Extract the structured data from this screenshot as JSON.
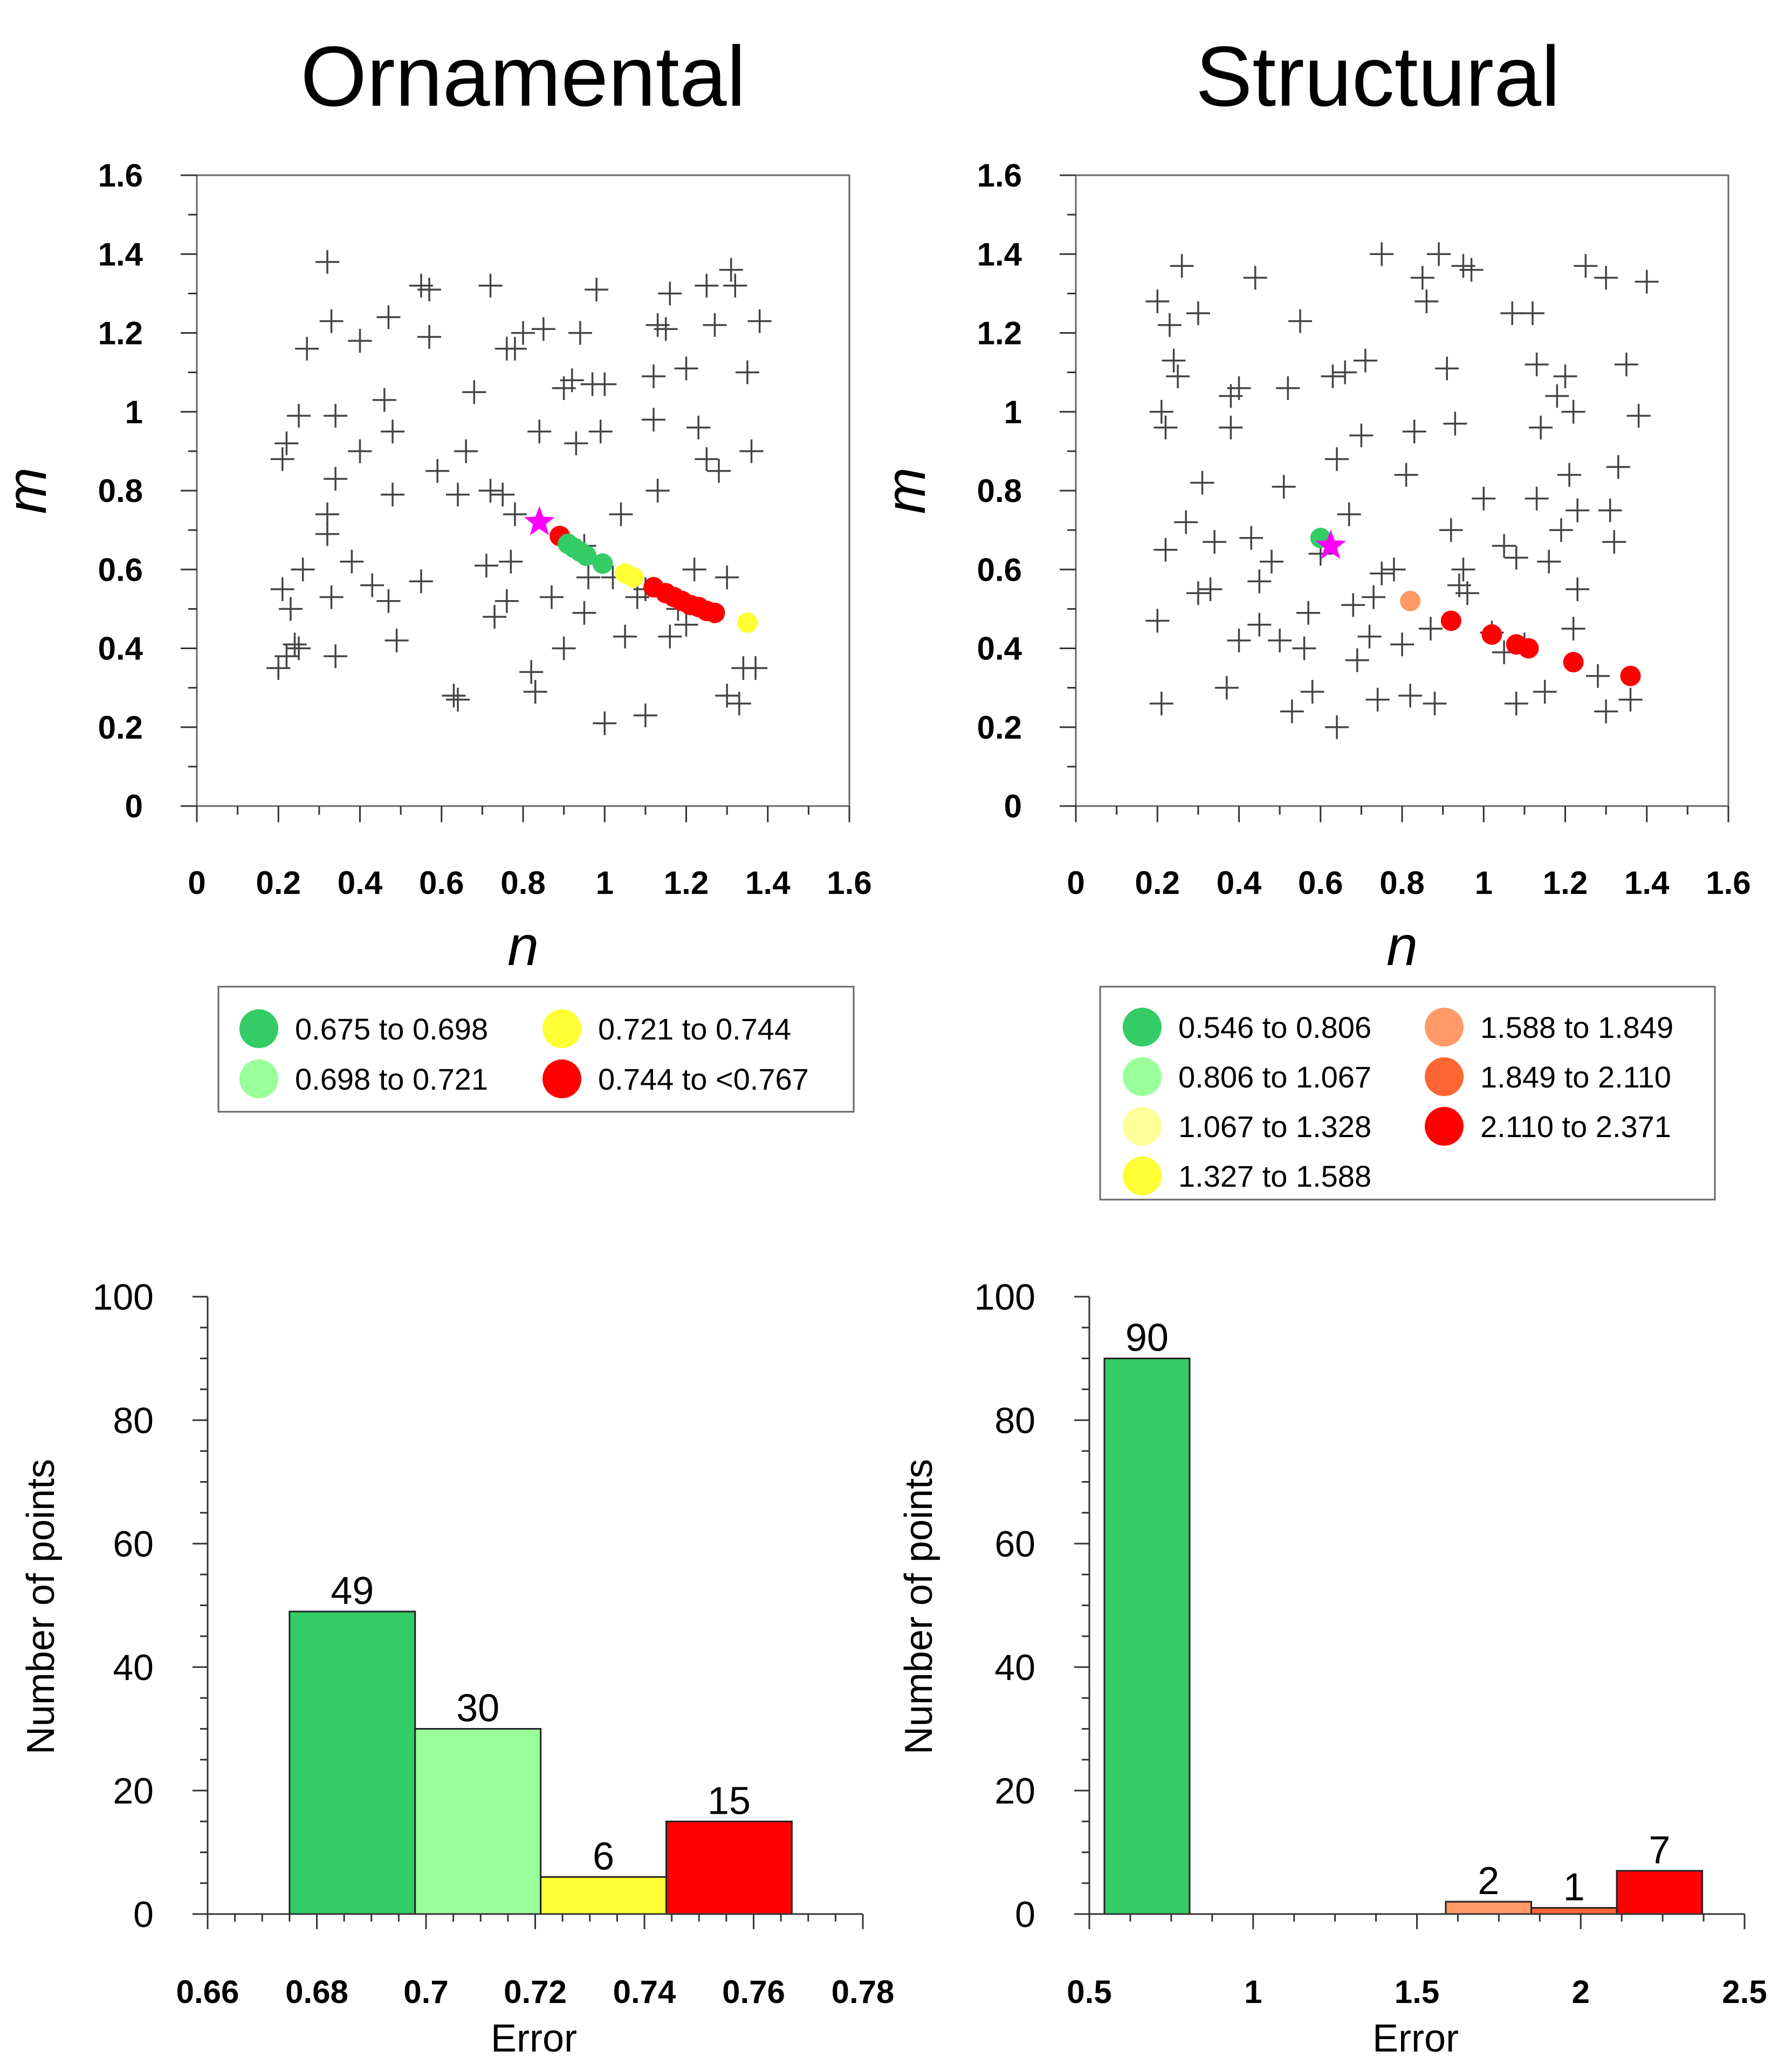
{
  "columns": [
    {
      "title": "Ornamental"
    },
    {
      "title": "Structural"
    }
  ],
  "colors": {
    "axis": "#333333",
    "cross": "#444444",
    "star": "#ff00ff",
    "frame": "#666666"
  },
  "chart_data": [
    {
      "id": "ornamental-scatter",
      "type": "scatter",
      "xlabel": "n",
      "ylabel": "m",
      "xlim": [
        0,
        1.6
      ],
      "ylim": [
        0,
        1.6
      ],
      "xticks": [
        "0",
        "0.2",
        "0.4",
        "0.6",
        "0.8",
        "1",
        "1.2",
        "1.4",
        "1.6"
      ],
      "yticks": [
        "0",
        "0.2",
        "0.4",
        "0.6",
        "0.8",
        "1",
        "1.2",
        "1.4",
        "1.6"
      ],
      "samples": [
        [
          0.2,
          0.35
        ],
        [
          0.21,
          0.55
        ],
        [
          0.22,
          0.38
        ],
        [
          0.23,
          0.5
        ],
        [
          0.24,
          0.41
        ],
        [
          0.25,
          0.4
        ],
        [
          0.27,
          1.16
        ],
        [
          0.25,
          0.99
        ],
        [
          0.21,
          0.88
        ],
        [
          0.22,
          0.92
        ],
        [
          0.26,
          0.6
        ],
        [
          0.32,
          0.69
        ],
        [
          0.32,
          0.74
        ],
        [
          0.33,
          0.53
        ],
        [
          0.33,
          1.23
        ],
        [
          0.32,
          1.38
        ],
        [
          0.34,
          0.83
        ],
        [
          0.34,
          0.99
        ],
        [
          0.34,
          0.38
        ],
        [
          0.4,
          1.18
        ],
        [
          0.4,
          0.9
        ],
        [
          0.46,
          1.03
        ],
        [
          0.47,
          1.24
        ],
        [
          0.48,
          0.79
        ],
        [
          0.47,
          0.52
        ],
        [
          0.49,
          0.42
        ],
        [
          0.48,
          0.95
        ],
        [
          0.55,
          0.57
        ],
        [
          0.57,
          1.31
        ],
        [
          0.57,
          1.19
        ],
        [
          0.59,
          0.85
        ],
        [
          0.64,
          0.79
        ],
        [
          0.64,
          0.27
        ],
        [
          0.66,
          0.9
        ],
        [
          0.68,
          1.05
        ],
        [
          0.71,
          0.61
        ],
        [
          0.72,
          1.32
        ],
        [
          0.73,
          0.48
        ],
        [
          0.75,
          0.79
        ],
        [
          0.76,
          0.52
        ],
        [
          0.76,
          1.16
        ],
        [
          0.78,
          1.16
        ],
        [
          0.78,
          0.74
        ],
        [
          0.8,
          1.2
        ],
        [
          0.82,
          0.34
        ],
        [
          0.83,
          0.29
        ],
        [
          0.84,
          0.95
        ],
        [
          0.85,
          1.21
        ],
        [
          0.87,
          0.53
        ],
        [
          0.9,
          1.06
        ],
        [
          0.92,
          1.08
        ],
        [
          0.93,
          0.92
        ],
        [
          0.94,
          1.2
        ],
        [
          0.95,
          0.49
        ],
        [
          0.95,
          0.66
        ],
        [
          0.96,
          0.58
        ],
        [
          0.97,
          1.07
        ],
        [
          0.99,
          0.95
        ],
        [
          0.98,
          1.31
        ],
        [
          1.0,
          1.07
        ],
        [
          1.0,
          0.21
        ],
        [
          1.02,
          0.58
        ],
        [
          1.04,
          0.74
        ],
        [
          1.08,
          0.53
        ],
        [
          1.1,
          0.23
        ],
        [
          1.12,
          1.09
        ],
        [
          1.12,
          0.98
        ],
        [
          1.13,
          0.8
        ],
        [
          1.13,
          1.22
        ],
        [
          1.15,
          1.21
        ],
        [
          1.16,
          1.3
        ],
        [
          1.16,
          0.43
        ],
        [
          1.18,
          0.5
        ],
        [
          1.2,
          0.46
        ],
        [
          1.2,
          1.11
        ],
        [
          1.22,
          0.6
        ],
        [
          1.23,
          0.96
        ],
        [
          1.25,
          0.88
        ],
        [
          1.25,
          1.32
        ],
        [
          1.27,
          1.22
        ],
        [
          1.28,
          0.85
        ],
        [
          1.3,
          0.28
        ],
        [
          1.3,
          0.58
        ],
        [
          1.31,
          1.36
        ],
        [
          1.32,
          1.32
        ],
        [
          1.33,
          0.26
        ],
        [
          1.34,
          0.35
        ],
        [
          1.35,
          1.1
        ],
        [
          1.36,
          0.9
        ],
        [
          1.37,
          0.35
        ],
        [
          1.38,
          1.23
        ],
        [
          0.55,
          1.32
        ],
        [
          0.63,
          0.28
        ],
        [
          0.43,
          0.56
        ],
        [
          0.72,
          0.8
        ],
        [
          1.05,
          0.43
        ],
        [
          1.1,
          0.55
        ],
        [
          0.9,
          0.4
        ],
        [
          0.77,
          0.62
        ],
        [
          0.38,
          0.62
        ]
      ],
      "curve": [
        {
          "n": 0.89,
          "m": 0.685,
          "c": "#ff0000"
        },
        {
          "n": 0.91,
          "m": 0.665,
          "c": "#33cc66"
        },
        {
          "n": 0.925,
          "m": 0.655,
          "c": "#33cc66"
        },
        {
          "n": 0.94,
          "m": 0.645,
          "c": "#33cc66"
        },
        {
          "n": 0.955,
          "m": 0.635,
          "c": "#33cc66"
        },
        {
          "n": 0.995,
          "m": 0.615,
          "c": "#33cc66"
        },
        {
          "n": 1.05,
          "m": 0.59,
          "c": "#ffff33"
        },
        {
          "n": 1.07,
          "m": 0.58,
          "c": "#ffff33"
        },
        {
          "n": 1.12,
          "m": 0.555,
          "c": "#ff0000"
        },
        {
          "n": 1.15,
          "m": 0.54,
          "c": "#ff0000"
        },
        {
          "n": 1.17,
          "m": 0.53,
          "c": "#ff0000"
        },
        {
          "n": 1.19,
          "m": 0.52,
          "c": "#ff0000"
        },
        {
          "n": 1.21,
          "m": 0.51,
          "c": "#ff0000"
        },
        {
          "n": 1.23,
          "m": 0.505,
          "c": "#ff0000"
        },
        {
          "n": 1.25,
          "m": 0.495,
          "c": "#ff0000"
        },
        {
          "n": 1.27,
          "m": 0.49,
          "c": "#ff0000"
        },
        {
          "n": 1.35,
          "m": 0.465,
          "c": "#ffff33"
        }
      ],
      "star": {
        "n": 0.84,
        "m": 0.72
      }
    },
    {
      "id": "structural-scatter",
      "type": "scatter",
      "xlabel": "n",
      "ylabel": "m",
      "xlim": [
        0,
        1.6
      ],
      "ylim": [
        0,
        1.6
      ],
      "xticks": [
        "0",
        "0.2",
        "0.4",
        "0.6",
        "0.8",
        "1",
        "1.2",
        "1.4",
        "1.6"
      ],
      "yticks": [
        "0",
        "0.2",
        "0.4",
        "0.6",
        "0.8",
        "1",
        "1.2",
        "1.4",
        "1.6"
      ],
      "samples": [
        [
          0.2,
          1.28
        ],
        [
          0.21,
          1.0
        ],
        [
          0.22,
          0.96
        ],
        [
          0.23,
          1.22
        ],
        [
          0.24,
          1.13
        ],
        [
          0.25,
          1.09
        ],
        [
          0.26,
          1.37
        ],
        [
          0.2,
          0.47
        ],
        [
          0.21,
          0.26
        ],
        [
          0.22,
          0.65
        ],
        [
          0.27,
          0.72
        ],
        [
          0.3,
          1.25
        ],
        [
          0.31,
          0.82
        ],
        [
          0.33,
          0.55
        ],
        [
          0.34,
          0.67
        ],
        [
          0.37,
          0.3
        ],
        [
          0.38,
          0.96
        ],
        [
          0.38,
          1.04
        ],
        [
          0.4,
          1.06
        ],
        [
          0.43,
          0.68
        ],
        [
          0.44,
          1.34
        ],
        [
          0.45,
          0.57
        ],
        [
          0.45,
          0.46
        ],
        [
          0.5,
          0.42
        ],
        [
          0.51,
          0.81
        ],
        [
          0.52,
          1.06
        ],
        [
          0.55,
          1.23
        ],
        [
          0.56,
          0.4
        ],
        [
          0.57,
          0.49
        ],
        [
          0.58,
          0.29
        ],
        [
          0.6,
          0.64
        ],
        [
          0.63,
          1.09
        ],
        [
          0.64,
          0.88
        ],
        [
          0.64,
          0.2
        ],
        [
          0.66,
          1.1
        ],
        [
          0.67,
          0.74
        ],
        [
          0.69,
          0.37
        ],
        [
          0.7,
          0.94
        ],
        [
          0.71,
          1.13
        ],
        [
          0.72,
          0.43
        ],
        [
          0.73,
          0.53
        ],
        [
          0.74,
          0.27
        ],
        [
          0.75,
          1.4
        ],
        [
          0.78,
          0.6
        ],
        [
          0.8,
          0.41
        ],
        [
          0.81,
          0.84
        ],
        [
          0.82,
          0.28
        ],
        [
          0.83,
          0.95
        ],
        [
          0.85,
          1.34
        ],
        [
          0.86,
          1.28
        ],
        [
          0.87,
          0.45
        ],
        [
          0.88,
          0.26
        ],
        [
          0.89,
          1.4
        ],
        [
          0.91,
          1.11
        ],
        [
          0.92,
          0.7
        ],
        [
          0.93,
          0.97
        ],
        [
          0.94,
          0.56
        ],
        [
          0.95,
          1.37
        ],
        [
          0.96,
          0.54
        ],
        [
          0.97,
          1.36
        ],
        [
          1.0,
          0.78
        ],
        [
          1.02,
          0.44
        ],
        [
          1.05,
          0.39
        ],
        [
          1.07,
          1.25
        ],
        [
          1.08,
          0.63
        ],
        [
          1.08,
          0.26
        ],
        [
          1.1,
          0.41
        ],
        [
          1.12,
          1.25
        ],
        [
          1.13,
          1.12
        ],
        [
          1.14,
          0.96
        ],
        [
          1.15,
          0.29
        ],
        [
          1.16,
          0.62
        ],
        [
          1.18,
          1.04
        ],
        [
          1.19,
          0.7
        ],
        [
          1.2,
          1.09
        ],
        [
          1.21,
          0.84
        ],
        [
          1.22,
          0.45
        ],
        [
          1.23,
          0.55
        ],
        [
          1.23,
          0.75
        ],
        [
          1.25,
          1.37
        ],
        [
          1.28,
          0.33
        ],
        [
          1.3,
          1.34
        ],
        [
          1.3,
          0.24
        ],
        [
          1.31,
          0.75
        ],
        [
          1.32,
          0.67
        ],
        [
          1.33,
          0.86
        ],
        [
          1.35,
          1.12
        ],
        [
          1.36,
          0.27
        ],
        [
          1.38,
          0.99
        ],
        [
          1.4,
          1.33
        ],
        [
          1.22,
          1.0
        ],
        [
          0.3,
          0.54
        ],
        [
          0.53,
          0.24
        ],
        [
          0.48,
          0.62
        ],
        [
          0.75,
          0.59
        ],
        [
          1.13,
          0.78
        ],
        [
          0.95,
          0.6
        ],
        [
          0.68,
          0.51
        ],
        [
          1.05,
          0.66
        ],
        [
          0.4,
          0.42
        ]
      ],
      "curve": [
        {
          "n": 0.6,
          "m": 0.68,
          "c": "#33cc66"
        },
        {
          "n": 0.82,
          "m": 0.52,
          "c": "#ff9966"
        },
        {
          "n": 0.92,
          "m": 0.47,
          "c": "#ff0000"
        },
        {
          "n": 1.02,
          "m": 0.435,
          "c": "#ff0000"
        },
        {
          "n": 1.08,
          "m": 0.41,
          "c": "#ff0000"
        },
        {
          "n": 1.11,
          "m": 0.4,
          "c": "#ff0000"
        },
        {
          "n": 1.22,
          "m": 0.365,
          "c": "#ff0000"
        },
        {
          "n": 1.36,
          "m": 0.33,
          "c": "#ff0000"
        }
      ],
      "star": {
        "n": 0.625,
        "m": 0.66
      }
    },
    {
      "id": "ornamental-hist",
      "type": "bar",
      "xlabel": "Error",
      "ylabel": "Number of points",
      "xlim": [
        0.66,
        0.78
      ],
      "ylim": [
        0,
        100
      ],
      "xticks": [
        0.66,
        0.68,
        0.7,
        0.72,
        0.74,
        0.76,
        0.78
      ],
      "xtick_labels": [
        "0.66",
        "0.68",
        "0.7",
        "0.72",
        "0.74",
        "0.76",
        "0.78"
      ],
      "yticks": [
        0,
        20,
        40,
        60,
        80,
        100
      ],
      "ytick_labels": [
        "0",
        "20",
        "40",
        "60",
        "80",
        "100"
      ],
      "bars": [
        {
          "from": 0.675,
          "to": 0.698,
          "value": 49,
          "label": "49",
          "color": "#33cc66"
        },
        {
          "from": 0.698,
          "to": 0.721,
          "value": 30,
          "label": "30",
          "color": "#99ff99"
        },
        {
          "from": 0.721,
          "to": 0.744,
          "value": 6,
          "label": "6",
          "color": "#ffff33"
        },
        {
          "from": 0.744,
          "to": 0.767,
          "value": 15,
          "label": "15",
          "color": "#ff0000"
        }
      ]
    },
    {
      "id": "structural-hist",
      "type": "bar",
      "xlabel": "Error",
      "ylabel": "Number of points",
      "xlim": [
        0.5,
        2.5
      ],
      "ylim": [
        0,
        100
      ],
      "xticks": [
        0.5,
        1,
        1.5,
        2,
        2.5
      ],
      "xtick_labels": [
        "0.5",
        "1",
        "1.5",
        "2",
        "2.5"
      ],
      "yticks": [
        0,
        20,
        40,
        60,
        80,
        100
      ],
      "ytick_labels": [
        "0",
        "20",
        "40",
        "60",
        "80",
        "100"
      ],
      "bars": [
        {
          "from": 0.546,
          "to": 0.806,
          "value": 90,
          "label": "90",
          "color": "#33cc66"
        },
        {
          "from": 1.588,
          "to": 1.849,
          "value": 2,
          "label": "2",
          "color": "#ff9966"
        },
        {
          "from": 1.849,
          "to": 2.11,
          "value": 1,
          "label": "1",
          "color": "#ff6633"
        },
        {
          "from": 2.11,
          "to": 2.371,
          "value": 7,
          "label": "7",
          "color": "#ff0000"
        }
      ]
    }
  ],
  "legends": [
    {
      "id": "ornamental-legend",
      "entries": [
        {
          "label": "0.675 to 0.698",
          "color": "#33cc66"
        },
        {
          "label": "0.698 to 0.721",
          "color": "#99ff99"
        },
        {
          "label": "0.721 to 0.744",
          "color": "#ffff33"
        },
        {
          "label": "0.744 to <0.767",
          "color": "#ff0000"
        }
      ]
    },
    {
      "id": "structural-legend",
      "entries": [
        {
          "label": "0.546 to 0.806",
          "color": "#33cc66"
        },
        {
          "label": "0.806 to 1.067",
          "color": "#99ff99"
        },
        {
          "label": "1.067 to 1.328",
          "color": "#ffff99"
        },
        {
          "label": "1.327 to 1.588",
          "color": "#ffff33"
        },
        {
          "label": "1.588 to 1.849",
          "color": "#ff9966"
        },
        {
          "label": "1.849 to 2.110",
          "color": "#ff6633"
        },
        {
          "label": "2.110 to 2.371",
          "color": "#ff0000"
        }
      ]
    }
  ]
}
